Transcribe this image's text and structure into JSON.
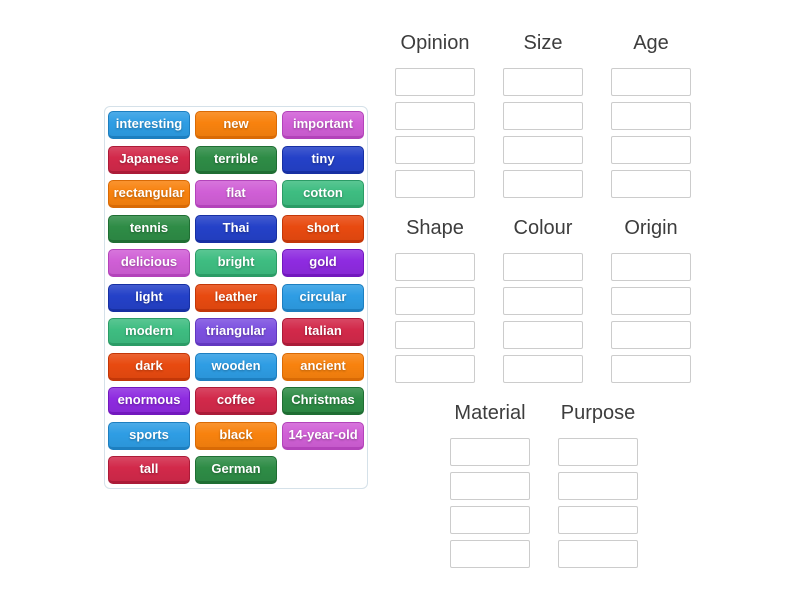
{
  "page": {
    "background": "#ffffff"
  },
  "palette": {
    "blue": {
      "bg": "#2e9de4",
      "edge": "#1d7fc0"
    },
    "orange": {
      "bg": "#f8820e",
      "edge": "#d96a05"
    },
    "orchid": {
      "bg": "#d05fd6",
      "edge": "#b343ba"
    },
    "crimson": {
      "bg": "#d2294a",
      "edge": "#ab1b38"
    },
    "green": {
      "bg": "#2e8c46",
      "edge": "#1f6e33"
    },
    "royal": {
      "bg": "#2441c8",
      "edge": "#1730a3"
    },
    "orangered": {
      "bg": "#e84a10",
      "edge": "#c33708"
    },
    "emerald": {
      "bg": "#3ebd81",
      "edge": "#2b9c66"
    },
    "violet": {
      "bg": "#8e2be0",
      "edge": "#7218be"
    },
    "purple": {
      "bg": "#7c50e0",
      "edge": "#6238c0"
    }
  },
  "word_bank": {
    "tiles": [
      {
        "label": "interesting",
        "color": "blue"
      },
      {
        "label": "new",
        "color": "orange"
      },
      {
        "label": "important",
        "color": "orchid"
      },
      {
        "label": "Japanese",
        "color": "crimson"
      },
      {
        "label": "terrible",
        "color": "green"
      },
      {
        "label": "tiny",
        "color": "royal"
      },
      {
        "label": "rectangular",
        "color": "orange"
      },
      {
        "label": "flat",
        "color": "orchid"
      },
      {
        "label": "cotton",
        "color": "emerald"
      },
      {
        "label": "tennis",
        "color": "green"
      },
      {
        "label": "Thai",
        "color": "royal"
      },
      {
        "label": "short",
        "color": "orangered"
      },
      {
        "label": "delicious",
        "color": "orchid"
      },
      {
        "label": "bright",
        "color": "emerald"
      },
      {
        "label": "gold",
        "color": "violet"
      },
      {
        "label": "light",
        "color": "royal"
      },
      {
        "label": "leather",
        "color": "orangered"
      },
      {
        "label": "circular",
        "color": "blue"
      },
      {
        "label": "modern",
        "color": "emerald"
      },
      {
        "label": "triangular",
        "color": "purple"
      },
      {
        "label": "Italian",
        "color": "crimson"
      },
      {
        "label": "dark",
        "color": "orangered"
      },
      {
        "label": "wooden",
        "color": "blue"
      },
      {
        "label": "ancient",
        "color": "orange"
      },
      {
        "label": "enormous",
        "color": "violet"
      },
      {
        "label": "coffee",
        "color": "crimson"
      },
      {
        "label": "Christmas",
        "color": "green"
      },
      {
        "label": "sports",
        "color": "blue"
      },
      {
        "label": "black",
        "color": "orange"
      },
      {
        "label": "14-year-old",
        "color": "orchid"
      },
      {
        "label": "tall",
        "color": "crimson"
      },
      {
        "label": "German",
        "color": "green"
      }
    ]
  },
  "groups": [
    {
      "label": "Opinion",
      "row": 1,
      "slots": 4
    },
    {
      "label": "Size",
      "row": 1,
      "slots": 4
    },
    {
      "label": "Age",
      "row": 1,
      "slots": 4
    },
    {
      "label": "Shape",
      "row": 2,
      "slots": 4
    },
    {
      "label": "Colour",
      "row": 2,
      "slots": 4
    },
    {
      "label": "Origin",
      "row": 2,
      "slots": 4
    },
    {
      "label": "Material",
      "row": 3,
      "slots": 4
    },
    {
      "label": "Purpose",
      "row": 3,
      "slots": 4
    }
  ]
}
